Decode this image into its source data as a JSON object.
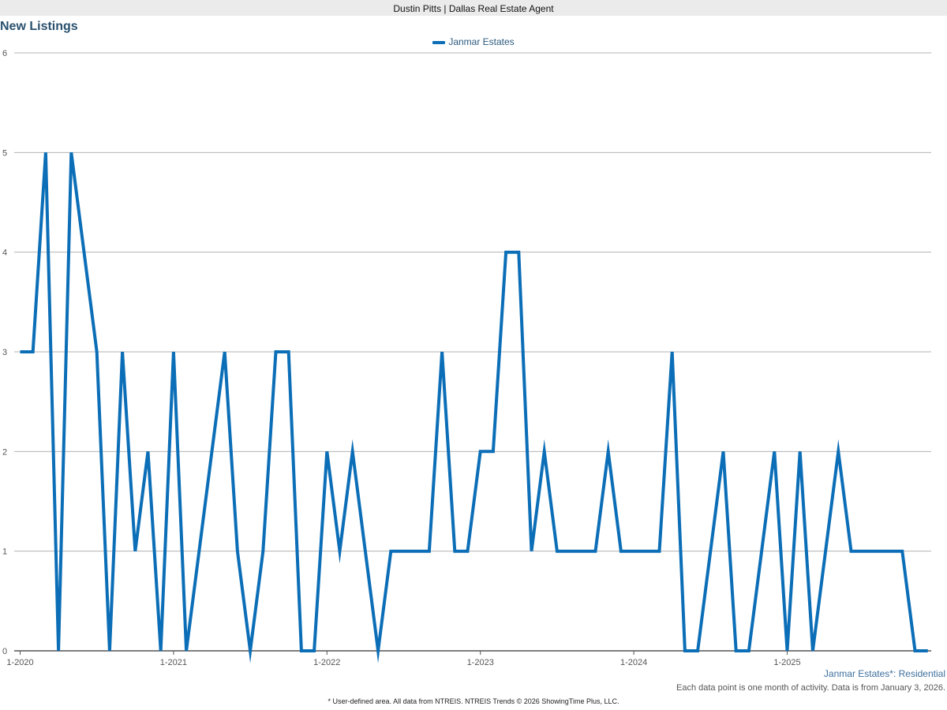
{
  "header": {
    "text": "Dustin Pitts | Dallas Real Estate Agent"
  },
  "chart_data": {
    "type": "line",
    "title": "New Listings",
    "xlabel": "",
    "ylabel": "",
    "ylim": [
      0,
      6
    ],
    "yticks": [
      "0",
      "1",
      "2",
      "3",
      "4",
      "5",
      "6"
    ],
    "xticks": [
      "1-2020",
      "1-2021",
      "1-2022",
      "1-2023",
      "1-2024",
      "1-2025"
    ],
    "x_start": "1-2020",
    "x_interval": "month",
    "grid": true,
    "legend_position": "top-center",
    "series": [
      {
        "name": "Janmar Estates",
        "color": "#0b6eb7",
        "values": [
          3,
          3,
          5,
          0,
          5,
          4,
          3,
          0,
          3,
          1,
          2,
          0,
          3,
          0,
          1,
          2,
          3,
          1,
          0,
          1,
          3,
          3,
          0,
          0,
          2,
          1,
          2,
          1,
          0,
          1,
          1,
          1,
          1,
          3,
          1,
          1,
          2,
          2,
          4,
          4,
          1,
          2,
          1,
          1,
          1,
          1,
          2,
          1,
          1,
          1,
          1,
          3,
          0,
          0,
          1,
          2,
          0,
          0,
          1,
          2,
          0,
          2,
          0,
          1,
          2,
          1,
          1,
          1,
          1,
          1,
          0,
          0
        ]
      }
    ]
  },
  "subtitle": "Janmar Estates*: Residential",
  "note": "Each data point is one month of activity. Data is from January 3, 2026.",
  "footer": "* User-defined area. All data from NTREIS. NTREIS Trends © 2026 ShowingTime Plus, LLC."
}
